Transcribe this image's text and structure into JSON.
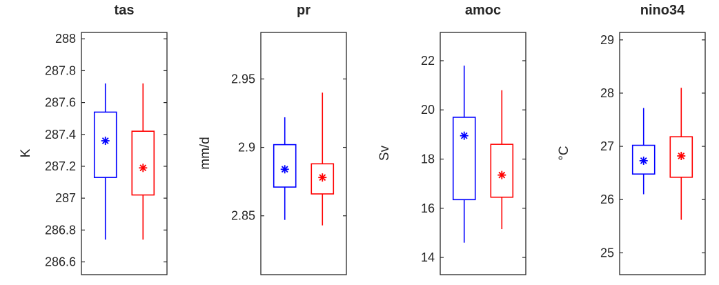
{
  "figure": {
    "background": "#ffffff",
    "axis_color": "#262626",
    "text_color": "#262626"
  },
  "chart_data": [
    {
      "type": "boxplot",
      "title": "tas",
      "ylabel": "K",
      "ylim": [
        286.52,
        288.04
      ],
      "yticks": [
        "286.6",
        "286.8",
        "287",
        "287.2",
        "287.4",
        "287.6",
        "287.8",
        "288"
      ],
      "grid": false,
      "series": [
        {
          "name": "blue-box",
          "color": "#0000ff",
          "whisker_low": 286.74,
          "q1": 287.13,
          "mean": 287.36,
          "q3": 287.54,
          "whisker_high": 287.72
        },
        {
          "name": "red-box",
          "color": "#ff0000",
          "whisker_low": 286.74,
          "q1": 287.02,
          "mean": 287.19,
          "q3": 287.42,
          "whisker_high": 287.72
        }
      ]
    },
    {
      "type": "boxplot",
      "title": "pr",
      "ylabel": "mm/d",
      "ylim": [
        2.807,
        2.984
      ],
      "yticks": [
        "2.85",
        "2.9",
        "2.95"
      ],
      "grid": false,
      "series": [
        {
          "name": "blue-box",
          "color": "#0000ff",
          "whisker_low": 2.847,
          "q1": 2.871,
          "mean": 2.884,
          "q3": 2.902,
          "whisker_high": 2.922
        },
        {
          "name": "red-box",
          "color": "#ff0000",
          "whisker_low": 2.843,
          "q1": 2.866,
          "mean": 2.878,
          "q3": 2.888,
          "whisker_high": 2.94
        }
      ]
    },
    {
      "type": "boxplot",
      "title": "amoc",
      "ylabel": "Sv",
      "ylim": [
        13.3,
        23.15
      ],
      "yticks": [
        "14",
        "16",
        "18",
        "20",
        "22"
      ],
      "grid": false,
      "series": [
        {
          "name": "blue-box",
          "color": "#0000ff",
          "whisker_low": 14.6,
          "q1": 16.35,
          "mean": 18.95,
          "q3": 19.7,
          "whisker_high": 21.8
        },
        {
          "name": "red-box",
          "color": "#ff0000",
          "whisker_low": 15.15,
          "q1": 16.45,
          "mean": 17.35,
          "q3": 18.6,
          "whisker_high": 20.8
        }
      ]
    },
    {
      "type": "boxplot",
      "title": "nino34",
      "ylabel": "°C",
      "ylim": [
        24.59,
        29.14
      ],
      "yticks": [
        "25",
        "26",
        "27",
        "28",
        "29"
      ],
      "grid": false,
      "series": [
        {
          "name": "blue-box",
          "color": "#0000ff",
          "whisker_low": 26.1,
          "q1": 26.48,
          "mean": 26.73,
          "q3": 27.02,
          "whisker_high": 27.72
        },
        {
          "name": "red-box",
          "color": "#ff0000",
          "whisker_low": 25.62,
          "q1": 26.42,
          "mean": 26.82,
          "q3": 27.18,
          "whisker_high": 28.1
        }
      ]
    }
  ]
}
